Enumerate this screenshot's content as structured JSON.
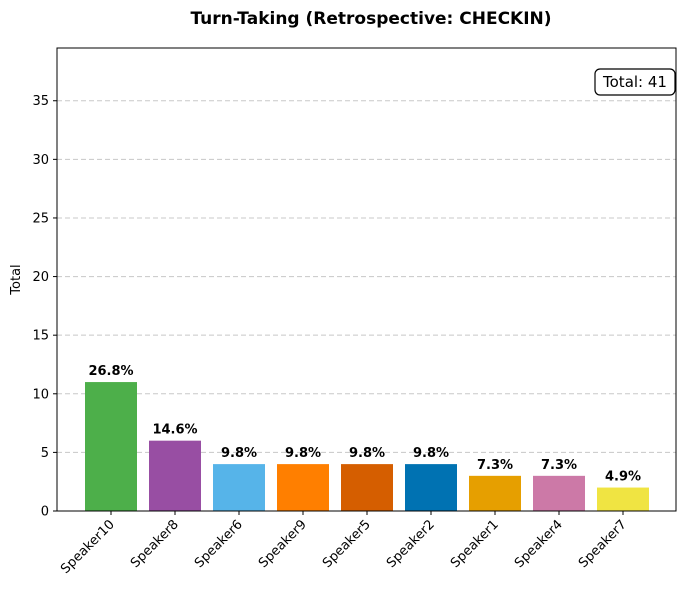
{
  "chart_data": {
    "type": "bar",
    "title": "Turn-Taking (Retrospective: CHECKIN)",
    "xlabel": "",
    "ylabel": "Total",
    "categories": [
      "Speaker10",
      "Speaker8",
      "Speaker6",
      "Speaker9",
      "Speaker5",
      "Speaker2",
      "Speaker1",
      "Speaker4",
      "Speaker7"
    ],
    "values": [
      11,
      6,
      4,
      4,
      4,
      4,
      3,
      3,
      2
    ],
    "bar_labels": [
      "26.8%",
      "14.6%",
      "9.8%",
      "9.8%",
      "9.8%",
      "9.8%",
      "7.3%",
      "7.3%",
      "4.9%"
    ],
    "colors": [
      "#4daf4a",
      "#984ea3",
      "#56b4e9",
      "#ff7f00",
      "#d55e00",
      "#0072b2",
      "#e69f00",
      "#cc79a7",
      "#f0e442"
    ],
    "ylim": [
      0,
      39.5
    ],
    "yticks": [
      0,
      5,
      10,
      15,
      20,
      25,
      30,
      35
    ],
    "grid": "y-dashed",
    "annotation": "Total: 41"
  }
}
